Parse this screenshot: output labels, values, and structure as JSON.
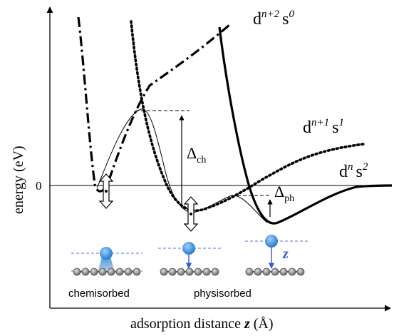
{
  "axes": {
    "y_label": "energy (eV)",
    "x_label": "adsorption distance",
    "x_var": "z",
    "x_unit": "(Å)",
    "zero_tick": "0"
  },
  "curves": {
    "dn2s0": {
      "base": "d",
      "sup1": "n+2",
      "orb": "s",
      "sup2": "0"
    },
    "dn1s1": {
      "base": "d",
      "sup1": "n+1",
      "orb": "s",
      "sup2": "1"
    },
    "dns2": {
      "base": "d",
      "sup1": "n",
      "orb": "s",
      "sup2": "2"
    }
  },
  "barriers": {
    "chem": {
      "symbol": "Δ",
      "sub": "ch"
    },
    "phys": {
      "symbol": "Δ",
      "sub": "ph"
    }
  },
  "insets": {
    "chemisorbed": "chemisorbed",
    "physisorbed": "physisorbed",
    "z_label": "z"
  },
  "colors": {
    "atom": "#3b8fd6",
    "atom_highlight": "#9fd0ff",
    "arrow_blue": "#3a5bd9",
    "dashed_blue": "#5a6fe0",
    "surface_atom": "#8c8c8c"
  }
}
